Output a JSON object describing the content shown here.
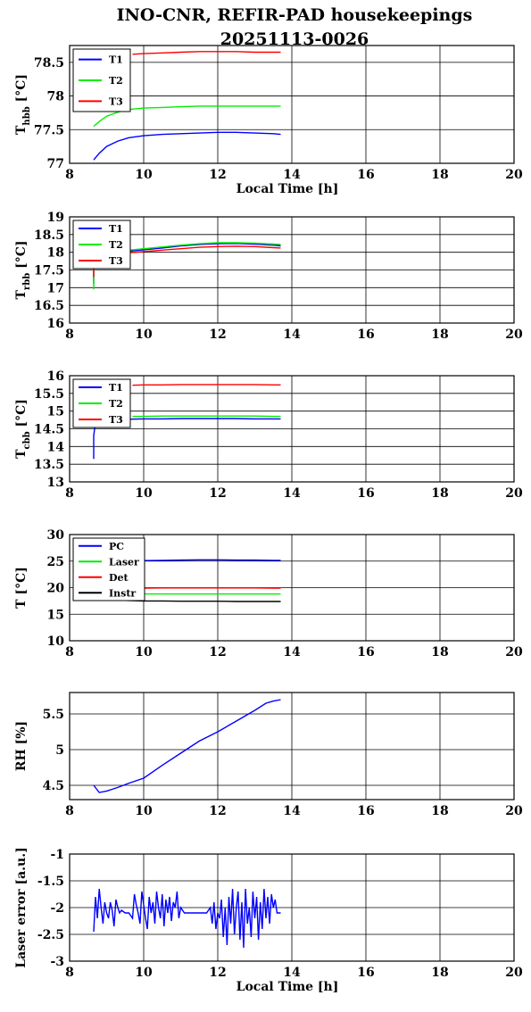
{
  "title_line1": "INO-CNR, REFIR-PAD housekeepings",
  "title_line2": "20251113-0026",
  "colors": {
    "blue": "#0000ff",
    "green": "#00ee00",
    "red": "#ff0000",
    "black": "#000000"
  },
  "chart_data": [
    {
      "type": "line",
      "ylabel_main": "T",
      "ylabel_sub": "hbb",
      "ylabel_unit": " [°C]",
      "xlabel": "Local Time [h]",
      "xlim": [
        8,
        20
      ],
      "ylim": [
        77,
        78.75
      ],
      "xticks": [
        8,
        10,
        12,
        14,
        16,
        18,
        20
      ],
      "yticks": [
        77,
        77.5,
        78,
        78.5
      ],
      "ytick_labels": [
        "77",
        "77.5",
        "78",
        "78.5"
      ],
      "grid": true,
      "legend_position": "top-left",
      "series": [
        {
          "name": "T1",
          "color": "blue",
          "x": [
            8.65,
            8.8,
            9.0,
            9.3,
            9.6,
            10.0,
            10.5,
            11.0,
            11.5,
            12.0,
            12.5,
            13.0,
            13.5,
            13.7
          ],
          "y": [
            77.05,
            77.15,
            77.25,
            77.33,
            77.38,
            77.41,
            77.43,
            77.44,
            77.45,
            77.46,
            77.46,
            77.45,
            77.44,
            77.43
          ]
        },
        {
          "name": "T2",
          "color": "green",
          "x": [
            8.65,
            8.8,
            9.0,
            9.3,
            9.6,
            10.0,
            10.5,
            11.0,
            11.5,
            12.0,
            12.5,
            13.0,
            13.5,
            13.7
          ],
          "y": [
            77.55,
            77.62,
            77.7,
            77.76,
            77.8,
            77.82,
            77.83,
            77.84,
            77.85,
            77.85,
            77.85,
            77.85,
            77.85,
            77.85
          ]
        },
        {
          "name": "T3",
          "color": "red",
          "x": [
            9.7,
            10.0,
            10.5,
            11.0,
            11.5,
            12.0,
            12.5,
            13.0,
            13.5,
            13.7
          ],
          "y": [
            78.62,
            78.63,
            78.64,
            78.65,
            78.66,
            78.66,
            78.66,
            78.65,
            78.65,
            78.65
          ]
        }
      ]
    },
    {
      "type": "line",
      "ylabel_main": "T",
      "ylabel_sub": "rbb",
      "ylabel_unit": " [°C]",
      "xlabel": "",
      "xlim": [
        8,
        20
      ],
      "ylim": [
        16,
        19
      ],
      "xticks": [
        8,
        10,
        12,
        14,
        16,
        18,
        20
      ],
      "yticks": [
        16,
        16.5,
        17,
        17.5,
        18,
        18.5,
        19
      ],
      "ytick_labels": [
        "16",
        "16.5",
        "17",
        "17.5",
        "18",
        "18.5",
        "19"
      ],
      "grid": true,
      "legend_position": "top-left",
      "series": [
        {
          "name": "T1",
          "color": "blue",
          "x": [
            8.65,
            8.65,
            9.0,
            9.5,
            10.0,
            10.5,
            11.0,
            11.5,
            12.0,
            12.5,
            13.0,
            13.5,
            13.7
          ],
          "y": [
            17.1,
            17.9,
            17.95,
            18.02,
            18.07,
            18.12,
            18.18,
            18.22,
            18.24,
            18.25,
            18.23,
            18.2,
            18.18
          ]
        },
        {
          "name": "T2",
          "color": "green",
          "x": [
            8.65,
            8.65,
            9.0,
            9.5,
            10.0,
            10.5,
            11.0,
            11.5,
            12.0,
            12.5,
            13.0,
            13.5,
            13.7
          ],
          "y": [
            16.95,
            17.95,
            18.0,
            18.05,
            18.1,
            18.15,
            18.2,
            18.24,
            18.27,
            18.27,
            18.26,
            18.23,
            18.22
          ]
        },
        {
          "name": "T3",
          "color": "red",
          "x": [
            8.65,
            8.65,
            9.0,
            9.5,
            10.0,
            10.5,
            11.0,
            11.5,
            12.0,
            12.5,
            13.0,
            13.5,
            13.7
          ],
          "y": [
            17.3,
            17.9,
            17.93,
            17.98,
            18.02,
            18.06,
            18.1,
            18.14,
            18.16,
            18.17,
            18.16,
            18.13,
            18.12
          ]
        }
      ]
    },
    {
      "type": "line",
      "ylabel_main": "T",
      "ylabel_sub": "cbb",
      "ylabel_unit": " [°C]",
      "xlabel": "",
      "xlim": [
        8,
        20
      ],
      "ylim": [
        13,
        16
      ],
      "xticks": [
        8,
        10,
        12,
        14,
        16,
        18,
        20
      ],
      "yticks": [
        13,
        13.5,
        14,
        14.5,
        15,
        15.5,
        16
      ],
      "ytick_labels": [
        "13",
        "13.5",
        "14",
        "14.5",
        "15",
        "15.5",
        "16"
      ],
      "grid": true,
      "legend_position": "top-left",
      "series": [
        {
          "name": "T1",
          "color": "blue",
          "x": [
            8.65,
            8.65,
            8.7,
            9.0,
            9.5,
            10.0,
            10.5,
            11.0,
            11.5,
            12.0,
            12.5,
            13.0,
            13.5,
            13.7
          ],
          "y": [
            13.65,
            14.3,
            14.7,
            14.76,
            14.77,
            14.78,
            14.78,
            14.79,
            14.79,
            14.79,
            14.79,
            14.78,
            14.78,
            14.78
          ]
        },
        {
          "name": "T2",
          "color": "green",
          "x": [
            9.7,
            10.0,
            10.5,
            11.0,
            11.5,
            12.0,
            12.5,
            13.0,
            13.5,
            13.7
          ],
          "y": [
            14.85,
            14.85,
            14.86,
            14.86,
            14.86,
            14.86,
            14.86,
            14.86,
            14.85,
            14.85
          ]
        },
        {
          "name": "T3",
          "color": "red",
          "x": [
            9.7,
            10.0,
            10.5,
            11.0,
            11.5,
            12.0,
            12.5,
            13.0,
            13.5,
            13.7
          ],
          "y": [
            15.73,
            15.74,
            15.74,
            15.75,
            15.75,
            15.75,
            15.75,
            15.75,
            15.74,
            15.74
          ]
        }
      ]
    },
    {
      "type": "line",
      "ylabel_main": "T [°C]",
      "ylabel_sub": "",
      "ylabel_unit": "",
      "xlabel": "",
      "xlim": [
        8,
        20
      ],
      "ylim": [
        10,
        30
      ],
      "xticks": [
        8,
        10,
        12,
        14,
        16,
        18,
        20
      ],
      "yticks": [
        10,
        15,
        20,
        25,
        30
      ],
      "ytick_labels": [
        "10",
        "15",
        "20",
        "25",
        "30"
      ],
      "grid": true,
      "legend_position": "top-left",
      "series": [
        {
          "name": "PC",
          "color": "blue",
          "x": [
            9.8,
            10.0,
            10.5,
            11.0,
            11.5,
            12.0,
            12.5,
            13.0,
            13.5,
            13.7
          ],
          "y": [
            25.1,
            25.1,
            25.15,
            25.2,
            25.25,
            25.25,
            25.2,
            25.2,
            25.15,
            25.15
          ]
        },
        {
          "name": "Laser",
          "color": "green",
          "x": [
            9.8,
            10.0,
            10.5,
            11.0,
            11.5,
            12.0,
            12.5,
            13.0,
            13.5,
            13.7
          ],
          "y": [
            18.8,
            18.8,
            18.8,
            18.8,
            18.8,
            18.8,
            18.8,
            18.8,
            18.8,
            18.8
          ]
        },
        {
          "name": "Det",
          "color": "red",
          "x": [
            9.8,
            10.0,
            10.5,
            11.0,
            11.5,
            12.0,
            12.5,
            13.0,
            13.5,
            13.7
          ],
          "y": [
            19.9,
            19.9,
            19.95,
            19.95,
            19.95,
            19.95,
            19.95,
            19.95,
            19.9,
            19.9
          ]
        },
        {
          "name": "Instr",
          "color": "black",
          "x": [
            8.65,
            8.8,
            9.0,
            9.5,
            10.0,
            10.5,
            11.0,
            11.5,
            12.0,
            12.5,
            13.0,
            13.5,
            13.7
          ],
          "y": [
            17.9,
            17.8,
            17.7,
            17.6,
            17.5,
            17.5,
            17.45,
            17.45,
            17.45,
            17.4,
            17.4,
            17.4,
            17.4
          ]
        }
      ]
    },
    {
      "type": "line",
      "ylabel_main": "RH [%]",
      "ylabel_sub": "",
      "ylabel_unit": "",
      "xlabel": "",
      "xlim": [
        8,
        20
      ],
      "ylim": [
        4.3,
        5.8
      ],
      "xticks": [
        8,
        10,
        12,
        14,
        16,
        18,
        20
      ],
      "yticks": [
        4.5,
        5,
        5.5
      ],
      "ytick_labels": [
        "4.5",
        "5",
        "5.5"
      ],
      "grid": true,
      "legend_position": "",
      "series": [
        {
          "name": "",
          "color": "blue",
          "x": [
            8.65,
            8.8,
            9.0,
            9.3,
            9.6,
            10.0,
            10.5,
            11.0,
            11.5,
            12.0,
            12.5,
            13.0,
            13.3,
            13.5,
            13.7
          ],
          "y": [
            4.5,
            4.4,
            4.42,
            4.47,
            4.53,
            4.6,
            4.78,
            4.95,
            5.12,
            5.25,
            5.4,
            5.55,
            5.65,
            5.68,
            5.7
          ]
        }
      ]
    },
    {
      "type": "line",
      "ylabel_main": "Laser error [a.u.]",
      "ylabel_sub": "",
      "ylabel_unit": "",
      "xlabel": "Local Time [h]",
      "xlim": [
        8,
        20
      ],
      "ylim": [
        -3,
        -1
      ],
      "xticks": [
        8,
        10,
        12,
        14,
        16,
        18,
        20
      ],
      "yticks": [
        -3,
        -2.5,
        -2,
        -1.5,
        -1
      ],
      "ytick_labels": [
        "-3",
        "-2.5",
        "-2",
        "-1.5",
        "-1"
      ],
      "grid": true,
      "legend_position": "",
      "series": [
        {
          "name": "",
          "color": "blue",
          "x": [
            8.65,
            8.7,
            8.75,
            8.8,
            8.85,
            8.9,
            8.95,
            9.0,
            9.05,
            9.1,
            9.15,
            9.2,
            9.25,
            9.3,
            9.35,
            9.4,
            9.5,
            9.6,
            9.7,
            9.75,
            9.8,
            9.85,
            9.9,
            9.95,
            10.0,
            10.05,
            10.1,
            10.15,
            10.2,
            10.25,
            10.3,
            10.35,
            10.4,
            10.45,
            10.5,
            10.55,
            10.6,
            10.65,
            10.7,
            10.75,
            10.8,
            10.85,
            10.9,
            10.95,
            11.0,
            11.1,
            11.3,
            11.5,
            11.7,
            11.8,
            11.85,
            11.9,
            11.95,
            12.0,
            12.05,
            12.1,
            12.15,
            12.2,
            12.25,
            12.3,
            12.35,
            12.4,
            12.45,
            12.5,
            12.55,
            12.6,
            12.65,
            12.7,
            12.75,
            12.8,
            12.85,
            12.9,
            12.95,
            13.0,
            13.05,
            13.1,
            13.15,
            13.2,
            13.25,
            13.3,
            13.35,
            13.4,
            13.45,
            13.5,
            13.55,
            13.6,
            13.7
          ],
          "y": [
            -2.45,
            -1.8,
            -2.2,
            -1.65,
            -2.0,
            -2.3,
            -1.9,
            -2.1,
            -2.2,
            -1.9,
            -2.05,
            -2.35,
            -1.85,
            -2.0,
            -2.1,
            -2.05,
            -2.1,
            -2.1,
            -2.2,
            -1.75,
            -1.95,
            -2.1,
            -2.3,
            -1.7,
            -1.95,
            -2.2,
            -2.4,
            -1.8,
            -2.1,
            -1.9,
            -2.3,
            -1.7,
            -2.0,
            -2.2,
            -1.75,
            -2.35,
            -1.85,
            -2.1,
            -1.8,
            -2.25,
            -1.9,
            -2.0,
            -1.7,
            -2.2,
            -2.0,
            -2.1,
            -2.1,
            -2.1,
            -2.1,
            -2.0,
            -2.3,
            -1.9,
            -2.4,
            -2.1,
            -2.2,
            -1.85,
            -2.55,
            -2.0,
            -2.7,
            -1.8,
            -2.3,
            -1.65,
            -2.5,
            -2.0,
            -1.7,
            -2.6,
            -1.9,
            -2.75,
            -1.65,
            -2.3,
            -2.0,
            -2.55,
            -1.7,
            -2.2,
            -1.8,
            -2.6,
            -1.9,
            -2.4,
            -1.65,
            -2.2,
            -1.8,
            -2.3,
            -1.75,
            -2.0,
            -1.85,
            -2.1,
            -2.1
          ]
        }
      ]
    }
  ]
}
